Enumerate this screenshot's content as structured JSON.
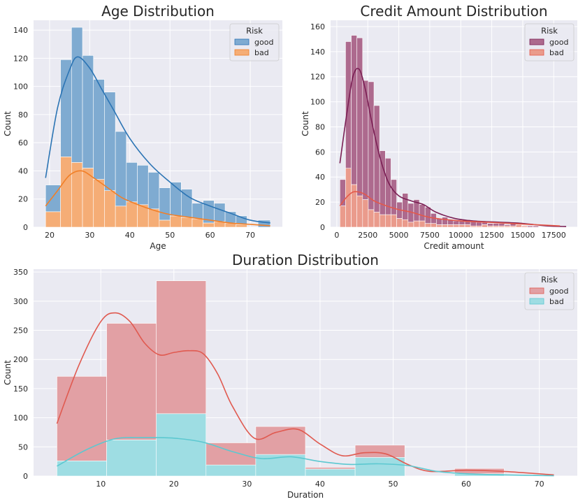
{
  "chart_data": [
    {
      "id": "age",
      "type": "histogram",
      "title": "Age Distribution",
      "xlabel": "Age",
      "ylabel": "Count",
      "xlim": [
        16,
        78
      ],
      "ylim": [
        0,
        147
      ],
      "xticks": [
        20,
        30,
        40,
        50,
        60,
        70
      ],
      "yticks": [
        0,
        20,
        40,
        60,
        80,
        100,
        120,
        140
      ],
      "grid": true,
      "stacked": true,
      "legend": {
        "title": "Risk",
        "placement": "top-right"
      },
      "bin_edges": [
        19,
        22.73,
        25.46,
        28.2,
        30.93,
        33.66,
        36.4,
        39.13,
        41.86,
        44.6,
        47.33,
        50.06,
        52.8,
        55.53,
        58.26,
        61,
        63.73,
        66.46,
        69.2,
        71.93,
        75
      ],
      "series": [
        {
          "name": "good",
          "color": "#4c72b0",
          "fill": "#7fabd1",
          "line": "#2b74b4",
          "values": [
            19,
            69,
            96,
            80,
            71,
            70,
            53,
            28,
            28,
            26,
            23,
            24,
            20,
            11,
            16,
            13,
            8,
            6,
            0,
            5
          ],
          "kde_x": [
            19,
            22,
            25,
            27,
            30,
            33,
            36,
            40,
            45,
            50,
            55,
            60,
            65,
            70,
            75
          ],
          "kde_y": [
            35,
            85,
            112,
            121,
            113,
            98,
            83,
            63,
            45,
            32,
            21,
            15,
            10,
            5,
            3
          ]
        },
        {
          "name": "bad",
          "color": "#dd8452",
          "fill": "#f5ad76",
          "line": "#f17f27",
          "values": [
            11,
            50,
            46,
            42,
            34,
            26,
            15,
            18,
            16,
            13,
            5,
            8,
            7,
            6,
            3,
            4,
            3,
            2,
            0,
            0
          ],
          "kde_x": [
            19,
            22,
            25,
            28,
            31,
            34,
            38,
            42,
            46,
            50,
            55,
            60,
            65,
            70,
            75
          ],
          "kde_y": [
            15,
            26,
            37,
            40,
            35,
            29,
            21,
            16,
            12,
            9,
            7,
            5,
            3,
            2,
            1
          ]
        }
      ]
    },
    {
      "id": "credit",
      "type": "histogram",
      "title": "Credit Amount Distribution",
      "xlabel": "Credit amount",
      "ylabel": "Count",
      "xlim": [
        -500,
        19400
      ],
      "ylim": [
        0,
        165
      ],
      "xticks": [
        0,
        2500,
        5000,
        7500,
        10000,
        12500,
        15000,
        17500
      ],
      "yticks": [
        0,
        20,
        40,
        60,
        80,
        100,
        120,
        140,
        160
      ],
      "grid": true,
      "stacked": true,
      "legend": {
        "title": "Risk",
        "placement": "top-right"
      },
      "bin_start": 250,
      "bin_width": 458,
      "series": [
        {
          "name": "good",
          "color": "#8c3a74",
          "fill": "#ad6a8e",
          "line": "#7a1f54",
          "values": [
            21,
            101,
            119,
            126,
            95,
            102,
            85,
            51,
            45,
            28,
            13,
            21,
            15,
            17,
            13,
            13,
            8,
            5,
            6,
            4,
            3,
            3,
            4,
            4,
            3,
            2,
            2,
            2,
            2,
            1,
            2,
            1,
            0,
            1,
            1,
            0,
            0,
            0,
            0,
            0
          ],
          "kde_x": [
            250,
            800,
            1300,
            1800,
            2300,
            2800,
            3500,
            4200,
            5000,
            6000,
            7000,
            8000,
            9500,
            11000,
            13000,
            15000,
            17000,
            18500
          ],
          "kde_y": [
            51,
            90,
            120,
            126,
            110,
            85,
            55,
            35,
            25,
            21,
            18,
            12,
            7,
            5,
            4,
            3,
            1,
            0.5
          ]
        },
        {
          "name": "bad",
          "color": "#e27c6c",
          "fill": "#ea9b8c",
          "line": "#e4584a",
          "values": [
            17,
            47,
            34,
            25,
            22,
            14,
            12,
            10,
            10,
            10,
            7,
            6,
            4,
            5,
            5,
            3,
            3,
            2,
            2,
            2,
            2,
            2,
            2,
            1,
            1,
            2,
            1,
            1,
            1,
            1,
            1,
            2,
            1,
            0,
            0,
            0,
            0,
            0,
            0,
            0
          ],
          "kde_x": [
            250,
            800,
            1300,
            1800,
            2300,
            3000,
            4000,
            5000,
            6000,
            7000,
            8000,
            10000,
            12000,
            14000,
            16000,
            18000
          ],
          "kde_y": [
            17,
            24,
            28,
            28,
            26,
            21,
            17,
            14,
            12,
            9,
            7,
            5,
            4,
            3,
            2,
            1
          ]
        }
      ]
    },
    {
      "id": "duration",
      "type": "histogram",
      "title": "Duration Distribution",
      "xlabel": "Duration",
      "ylabel": "Count",
      "xlim": [
        0.8,
        75.2
      ],
      "ylim": [
        0,
        355
      ],
      "xticks": [
        10,
        20,
        30,
        40,
        50,
        60,
        70
      ],
      "yticks": [
        0,
        50,
        100,
        150,
        200,
        250,
        300,
        350
      ],
      "grid": true,
      "stacked": true,
      "legend": {
        "title": "Risk",
        "placement": "top-right"
      },
      "bin_edges": [
        4,
        10.8,
        17.6,
        24.4,
        31.2,
        38,
        44.8,
        51.6,
        58.4,
        65.2,
        72
      ],
      "series": [
        {
          "name": "good",
          "color": "#c44e52",
          "fill": "#e2a0a4",
          "line": "#e05a50",
          "values": [
            145,
            200,
            228,
            38,
            48,
            3,
            21,
            0,
            9,
            0
          ],
          "kde_x": [
            4,
            7,
            10,
            12,
            14,
            16,
            18,
            20,
            22,
            24,
            26,
            28,
            31,
            34,
            37,
            40,
            43,
            46,
            49,
            52,
            55,
            60,
            65,
            72
          ],
          "kde_y": [
            90,
            190,
            265,
            280,
            265,
            228,
            208,
            212,
            215,
            210,
            175,
            120,
            65,
            75,
            80,
            55,
            35,
            40,
            38,
            20,
            8,
            10,
            8,
            2
          ]
        },
        {
          "name": "bad",
          "color": "#64b5cd",
          "fill": "#9edde3",
          "line": "#5cc8d0",
          "values": [
            26,
            62,
            107,
            19,
            37,
            12,
            32,
            0,
            4,
            0
          ],
          "kde_x": [
            4,
            8,
            12,
            16,
            20,
            24,
            28,
            32,
            36,
            40,
            44,
            48,
            52,
            56,
            60,
            65,
            72
          ],
          "kde_y": [
            17,
            45,
            64,
            66,
            65,
            58,
            42,
            30,
            33,
            25,
            20,
            21,
            18,
            8,
            4,
            2,
            0.5
          ]
        }
      ]
    }
  ]
}
